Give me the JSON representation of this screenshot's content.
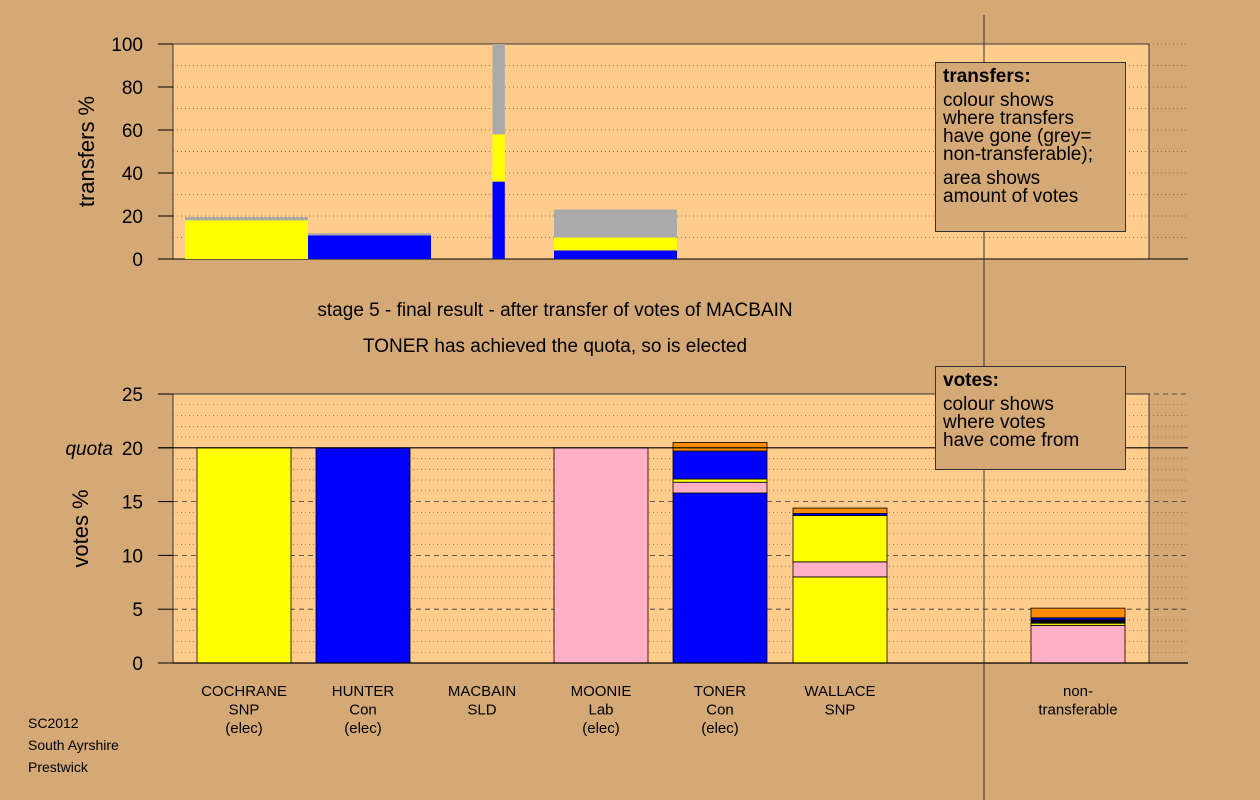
{
  "titles": {
    "stage": "stage 5 - final result - after transfer of votes of MACBAIN",
    "outcome": "TONER has achieved the quota, so is elected"
  },
  "footer": [
    "SC2012",
    "South Ayrshire",
    "Prestwick"
  ],
  "legend_transfers": {
    "heading": "transfers:",
    "text1": "colour shows\nwhere transfers\nhave gone (grey=\nnon-transferable);",
    "text2": "area shows\namount of votes"
  },
  "legend_votes": {
    "heading": "votes:",
    "text1": "colour shows\nwhere votes\nhave come from"
  },
  "colors": {
    "background": "#d4a976",
    "plot": "#ffcc8c",
    "SNP": "#ffff00",
    "Con": "#0000ff",
    "Lab": "#ffb0c4",
    "SLD": "#ff8c00",
    "nontransferable": "#aaaaaa",
    "black": "#000000"
  },
  "chart_data": [
    {
      "type": "bar",
      "name": "transfers",
      "ylabel": "transfers %",
      "ylim": [
        0,
        100
      ],
      "yticks": [
        0,
        20,
        40,
        60,
        80,
        100
      ],
      "grid": "dotted",
      "bars": [
        {
          "x_from": 0.0,
          "x_to": 1.0,
          "segments": [
            {
              "color": "SNP",
              "value": 18
            },
            {
              "color": "nontransferable",
              "value": 1.5
            }
          ]
        },
        {
          "x_from": 1.0,
          "x_to": 2.0,
          "segments": [
            {
              "color": "Con",
              "value": 11
            },
            {
              "color": "nontransferable",
              "value": 1
            }
          ]
        },
        {
          "x_from": 2.5,
          "x_to": 2.6,
          "segments": [
            {
              "color": "Con",
              "value": 36
            },
            {
              "color": "SNP",
              "value": 22
            },
            {
              "color": "nontransferable",
              "value": 42
            }
          ]
        },
        {
          "x_from": 3.0,
          "x_to": 4.0,
          "segments": [
            {
              "color": "Con",
              "value": 4
            },
            {
              "color": "SNP",
              "value": 6
            },
            {
              "color": "nontransferable",
              "value": 13
            }
          ]
        }
      ]
    },
    {
      "type": "bar",
      "name": "votes",
      "ylabel": "votes %",
      "ylim": [
        0,
        25
      ],
      "yticks": [
        0,
        5,
        10,
        15,
        20,
        25
      ],
      "quota": 20,
      "quota_label": "quota",
      "grid": "dotted",
      "categories": [
        {
          "label": [
            "COCHRANE",
            "SNP",
            "(elec)"
          ],
          "segments": [
            {
              "color": "SNP",
              "value": 20
            }
          ]
        },
        {
          "label": [
            "HUNTER",
            "Con",
            "(elec)"
          ],
          "segments": [
            {
              "color": "Con",
              "value": 20
            }
          ]
        },
        {
          "label": [
            "MACBAIN",
            "SLD"
          ],
          "segments": []
        },
        {
          "label": [
            "MOONIE",
            "Lab",
            "(elec)"
          ],
          "segments": [
            {
              "color": "Lab",
              "value": 20
            }
          ]
        },
        {
          "label": [
            "TONER",
            "Con",
            "(elec)"
          ],
          "segments": [
            {
              "color": "Con",
              "value": 15.8
            },
            {
              "color": "Lab",
              "value": 1.0
            },
            {
              "color": "SNP",
              "value": 0.3
            },
            {
              "color": "Con",
              "value": 2.6
            },
            {
              "color": "SLD",
              "value": 0.8
            }
          ]
        },
        {
          "label": [
            "WALLACE",
            "SNP"
          ],
          "segments": [
            {
              "color": "SNP",
              "value": 8.0
            },
            {
              "color": "Lab",
              "value": 1.4
            },
            {
              "color": "SNP",
              "value": 4.3
            },
            {
              "color": "Con",
              "value": 0.2
            },
            {
              "color": "SLD",
              "value": 0.5
            }
          ]
        },
        {
          "label": [
            "non-",
            "transferable"
          ],
          "segments": [
            {
              "color": "Lab",
              "value": 3.5
            },
            {
              "color": "SNP",
              "value": 0.2
            },
            {
              "color": "black",
              "value": 0.3
            },
            {
              "color": "Con",
              "value": 0.2
            },
            {
              "color": "SLD",
              "value": 0.9
            }
          ]
        }
      ]
    }
  ]
}
